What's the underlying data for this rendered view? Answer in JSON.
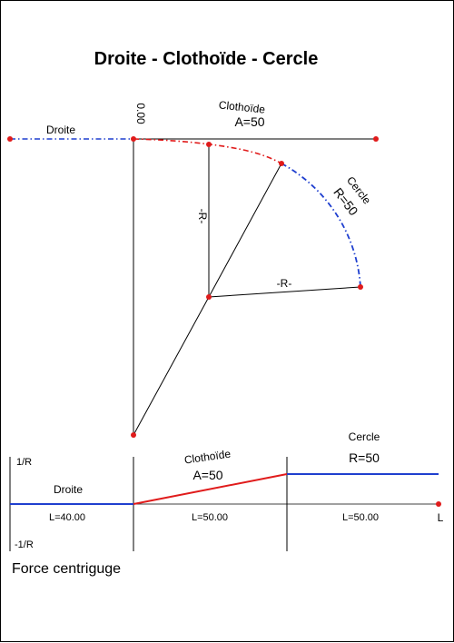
{
  "title": "Droite - Clothoïde - Cercle",
  "geometry": {
    "droite_label": "Droite",
    "clothoide_label": "Clothoïde",
    "clothoide_param": "A=50",
    "cercle_label": "Cercle",
    "cercle_param": "R=50",
    "start_value": "0.00",
    "radius_label_vertical": "-R-",
    "radius_label_horizontal": "-R-"
  },
  "curvature": {
    "top_label": "1/R",
    "bottom_label": "-1/R",
    "droite_label": "Droite",
    "clothoide_label": "Clothoïde",
    "clothoide_param": "A=50",
    "cercle_label": "Cercle",
    "cercle_param": "R=50",
    "len_droite": "L=40.00",
    "len_clothoide": "L=50.00",
    "len_cercle": "L=50.00",
    "axis_label": "L",
    "caption": "Force centriguge"
  },
  "colors": {
    "straight": "#1f3fcf",
    "clothoid": "#e01b1b",
    "circle": "#1f3fcf",
    "point": "#e01b1b",
    "line": "#000000"
  }
}
